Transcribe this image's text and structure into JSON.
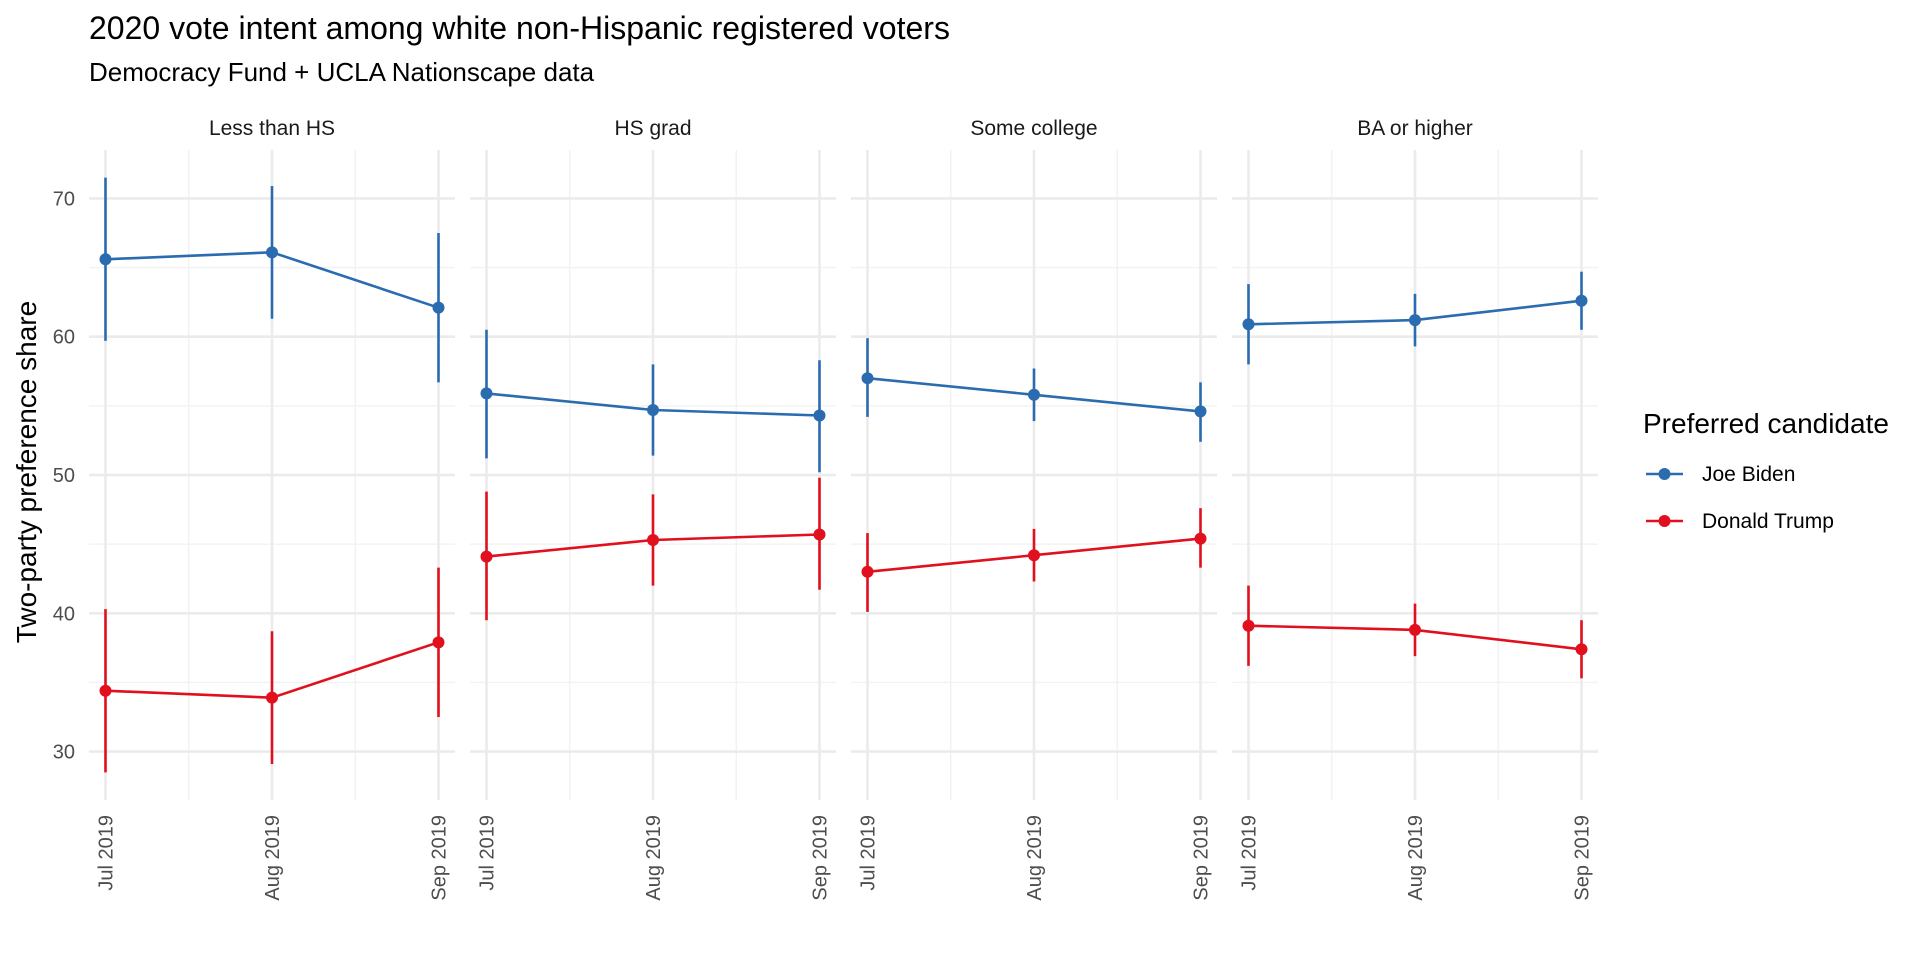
{
  "chart_data": {
    "type": "line",
    "title": "2020 vote intent among white non-Hispanic registered voters",
    "subtitle": "Democracy Fund + UCLA Nationscape data",
    "xlabel": "",
    "ylabel": "Two-party preference share",
    "x": [
      "Jul 2019",
      "Aug 2019",
      "Sep 2019"
    ],
    "y_ticks": [
      30,
      40,
      50,
      60,
      70
    ],
    "ylim": [
      26.5,
      73.5
    ],
    "grid": true,
    "legend": {
      "title": "Preferred candidate",
      "position": "right",
      "entries": [
        "Joe Biden",
        "Donald Trump"
      ]
    },
    "colors": {
      "Joe Biden": "#2b6cb0",
      "Donald Trump": "#e0101e"
    },
    "facets": [
      {
        "label": "Less than HS",
        "series": [
          {
            "name": "Joe Biden",
            "values": [
              65.6,
              66.1,
              62.1
            ],
            "lower": [
              59.7,
              61.3,
              56.7
            ],
            "upper": [
              71.5,
              70.9,
              67.5
            ]
          },
          {
            "name": "Donald Trump",
            "values": [
              34.4,
              33.9,
              37.9
            ],
            "lower": [
              28.5,
              29.1,
              32.5
            ],
            "upper": [
              40.3,
              38.7,
              43.3
            ]
          }
        ]
      },
      {
        "label": "HS grad",
        "series": [
          {
            "name": "Joe Biden",
            "values": [
              55.9,
              54.7,
              54.3
            ],
            "lower": [
              51.2,
              51.4,
              50.2
            ],
            "upper": [
              60.5,
              58.0,
              58.3
            ]
          },
          {
            "name": "Donald Trump",
            "values": [
              44.1,
              45.3,
              45.7
            ],
            "lower": [
              39.5,
              42.0,
              41.7
            ],
            "upper": [
              48.8,
              48.6,
              49.8
            ]
          }
        ]
      },
      {
        "label": "Some college",
        "series": [
          {
            "name": "Joe Biden",
            "values": [
              57.0,
              55.8,
              54.6
            ],
            "lower": [
              54.2,
              53.9,
              52.4
            ],
            "upper": [
              59.9,
              57.7,
              56.7
            ]
          },
          {
            "name": "Donald Trump",
            "values": [
              43.0,
              44.2,
              45.4
            ],
            "lower": [
              40.1,
              42.3,
              43.3
            ],
            "upper": [
              45.8,
              46.1,
              47.6
            ]
          }
        ]
      },
      {
        "label": "BA or higher",
        "series": [
          {
            "name": "Joe Biden",
            "values": [
              60.9,
              61.2,
              62.6
            ],
            "lower": [
              58.0,
              59.3,
              60.5
            ],
            "upper": [
              63.8,
              63.1,
              64.7
            ]
          },
          {
            "name": "Donald Trump",
            "values": [
              39.1,
              38.8,
              37.4
            ],
            "lower": [
              36.2,
              36.9,
              35.3
            ],
            "upper": [
              42.0,
              40.7,
              39.5
            ]
          }
        ]
      }
    ]
  }
}
